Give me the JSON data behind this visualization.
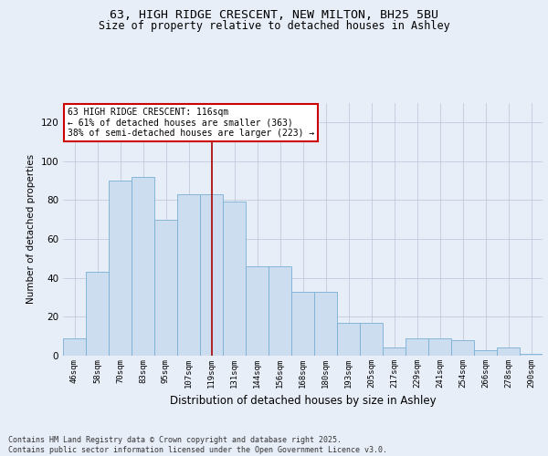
{
  "title_line1": "63, HIGH RIDGE CRESCENT, NEW MILTON, BH25 5BU",
  "title_line2": "Size of property relative to detached houses in Ashley",
  "xlabel": "Distribution of detached houses by size in Ashley",
  "ylabel": "Number of detached properties",
  "categories": [
    "46sqm",
    "58sqm",
    "70sqm",
    "83sqm",
    "95sqm",
    "107sqm",
    "119sqm",
    "131sqm",
    "144sqm",
    "156sqm",
    "168sqm",
    "180sqm",
    "193sqm",
    "205sqm",
    "217sqm",
    "229sqm",
    "241sqm",
    "254sqm",
    "266sqm",
    "278sqm",
    "290sqm"
  ],
  "values": [
    9,
    43,
    90,
    92,
    70,
    83,
    83,
    79,
    46,
    46,
    33,
    33,
    17,
    17,
    4,
    9,
    9,
    8,
    3,
    4,
    1
  ],
  "bar_color": "#ccddf0",
  "bar_edgecolor": "#7aafd4",
  "vline_index": 6,
  "vline_color": "#aa0000",
  "ylim": [
    0,
    130
  ],
  "yticks": [
    0,
    20,
    40,
    60,
    80,
    100,
    120
  ],
  "annotation_text": "63 HIGH RIDGE CRESCENT: 116sqm\n← 61% of detached houses are smaller (363)\n38% of semi-detached houses are larger (223) →",
  "annotation_box_facecolor": "#ffffff",
  "annotation_box_edgecolor": "#cc0000",
  "footer_text": "Contains HM Land Registry data © Crown copyright and database right 2025.\nContains public sector information licensed under the Open Government Licence v3.0.",
  "background_color": "#e8eef8"
}
